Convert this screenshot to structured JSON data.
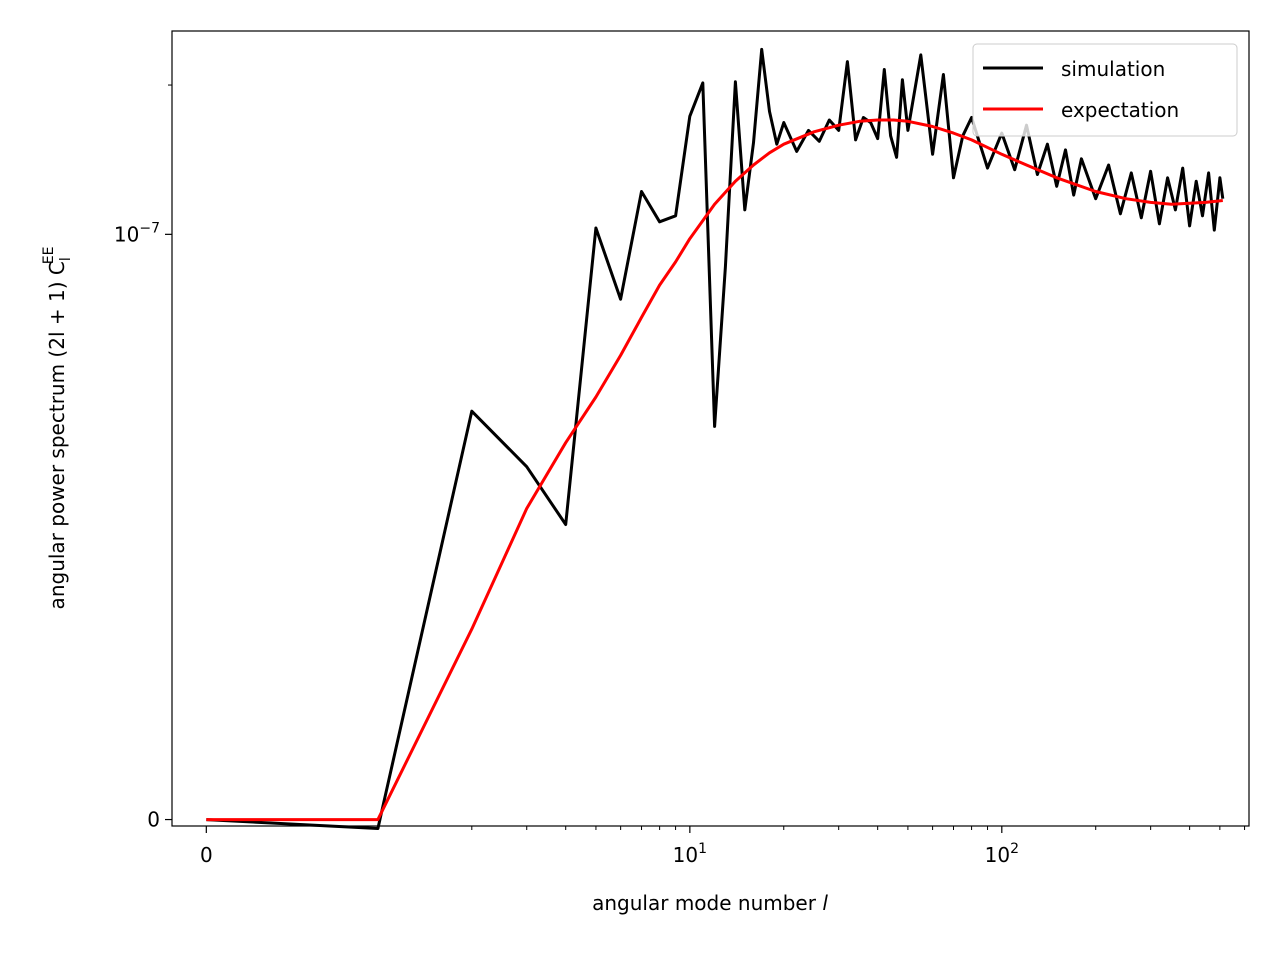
{
  "chart_data": {
    "type": "line",
    "title": "",
    "xlabel": "angular mode number ",
    "xlabel_var": "l",
    "ylabel": "angular power spectrum (2l + 1) C",
    "ylabel_sub": "l",
    "ylabel_sup": "EE",
    "xscale": "symlog",
    "yscale": "symlog",
    "x_ticks": [
      {
        "value": 0,
        "label": "0",
        "exp": ""
      },
      {
        "value": 10,
        "label": "10",
        "exp": "1"
      },
      {
        "value": 100,
        "label": "10",
        "exp": "2"
      }
    ],
    "y_ticks": [
      {
        "value": 0,
        "label": "0",
        "exp": ""
      },
      {
        "value": 1e-07,
        "label": "10",
        "exp": "−7"
      }
    ],
    "legend_position": "top-right",
    "series": [
      {
        "name": "simulation",
        "color": "#000000",
        "x": [
          0,
          1,
          2,
          3,
          4,
          5,
          6,
          7,
          8,
          9,
          10,
          11,
          12,
          13,
          14,
          15,
          16,
          17,
          18,
          19,
          20,
          22,
          24,
          26,
          28,
          30,
          32,
          34,
          36,
          38,
          40,
          42,
          44,
          46,
          48,
          50,
          55,
          60,
          65,
          70,
          75,
          80,
          90,
          100,
          110,
          120,
          130,
          140,
          150,
          160,
          170,
          180,
          200,
          220,
          240,
          260,
          280,
          300,
          320,
          340,
          360,
          380,
          400,
          420,
          440,
          460,
          480,
          500,
          511
        ],
        "y": [
          0,
          -1e-09,
          4.4e-08,
          3.4e-08,
          2.6e-08,
          1.03e-07,
          7.4e-08,
          1.22e-07,
          1.06e-07,
          1.09e-07,
          1.73e-07,
          2.02e-07,
          4.1e-08,
          8.6e-08,
          2.03e-07,
          1.12e-07,
          1.53e-07,
          2.36e-07,
          1.77e-07,
          1.52e-07,
          1.68e-07,
          1.47e-07,
          1.62e-07,
          1.54e-07,
          1.7e-07,
          1.62e-07,
          2.23e-07,
          1.55e-07,
          1.72e-07,
          1.68e-07,
          1.56e-07,
          2.15e-07,
          1.58e-07,
          1.43e-07,
          2.05e-07,
          1.62e-07,
          2.3e-07,
          1.45e-07,
          2.1e-07,
          1.3e-07,
          1.58e-07,
          1.72e-07,
          1.36e-07,
          1.6e-07,
          1.35e-07,
          1.66e-07,
          1.32e-07,
          1.52e-07,
          1.25e-07,
          1.48e-07,
          1.2e-07,
          1.42e-07,
          1.18e-07,
          1.38e-07,
          1.1e-07,
          1.33e-07,
          1.08e-07,
          1.34e-07,
          1.05e-07,
          1.3e-07,
          1.12e-07,
          1.36e-07,
          1.04e-07,
          1.28e-07,
          1.09e-07,
          1.33e-07,
          1.02e-07,
          1.3e-07,
          1.18e-07
        ]
      },
      {
        "name": "expectation",
        "color": "#ff0000",
        "x": [
          0,
          1,
          2,
          3,
          4,
          5,
          6,
          7,
          8,
          9,
          10,
          12,
          14,
          16,
          18,
          20,
          25,
          30,
          35,
          40,
          45,
          50,
          60,
          70,
          80,
          100,
          120,
          150,
          200,
          250,
          300,
          350,
          400,
          450,
          511
        ],
        "y": [
          0,
          0,
          1.6e-08,
          2.8e-08,
          3.8e-08,
          4.7e-08,
          5.7e-08,
          6.8e-08,
          7.9e-08,
          8.8e-08,
          9.8e-08,
          1.15e-07,
          1.28e-07,
          1.38e-07,
          1.46e-07,
          1.52e-07,
          1.61e-07,
          1.66e-07,
          1.69e-07,
          1.7e-07,
          1.7e-07,
          1.69e-07,
          1.65e-07,
          1.6e-07,
          1.55e-07,
          1.45e-07,
          1.38e-07,
          1.3e-07,
          1.22e-07,
          1.18e-07,
          1.16e-07,
          1.15e-07,
          1.155e-07,
          1.16e-07,
          1.17e-07
        ]
      }
    ]
  }
}
